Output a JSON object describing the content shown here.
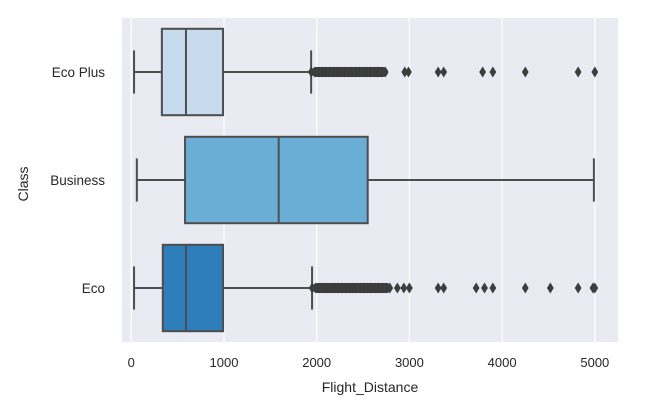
{
  "chart_data": {
    "type": "boxplot",
    "orientation": "horizontal",
    "xlabel": "Flight_Distance",
    "ylabel": "Class",
    "xlim": [
      -100,
      5250
    ],
    "xticks": [
      0,
      1000,
      2000,
      3000,
      4000,
      5000
    ],
    "grid": true,
    "legend": "none",
    "categories": [
      "Eco Plus",
      "Business",
      "Eco"
    ],
    "colors": {
      "background": "#eaeaf2",
      "grid": "#ffffff",
      "line": "#4d4d4d",
      "boxes": [
        "#c7dbef",
        "#6aaed6",
        "#2f7ebc"
      ]
    },
    "boxes": [
      {
        "category": "Eco Plus",
        "whisker_low": 30,
        "q1": 330,
        "median": 590,
        "q3": 990,
        "whisker_high": 1940,
        "outlier_band": [
          1940,
          2770
        ],
        "outliers": [
          2950,
          2990,
          3310,
          3370,
          3790,
          3900,
          4250,
          4820,
          5000
        ]
      },
      {
        "category": "Business",
        "whisker_low": 60,
        "q1": 580,
        "median": 1590,
        "q3": 2550,
        "whisker_high": 4990,
        "outlier_band": null,
        "outliers": []
      },
      {
        "category": "Eco",
        "whisker_low": 30,
        "q1": 340,
        "median": 590,
        "q3": 990,
        "whisker_high": 1950,
        "outlier_band": [
          1950,
          2810
        ],
        "outliers": [
          2870,
          2940,
          3000,
          3310,
          3370,
          3720,
          3810,
          3900,
          4250,
          4520,
          4820,
          4980,
          5000
        ]
      }
    ]
  }
}
